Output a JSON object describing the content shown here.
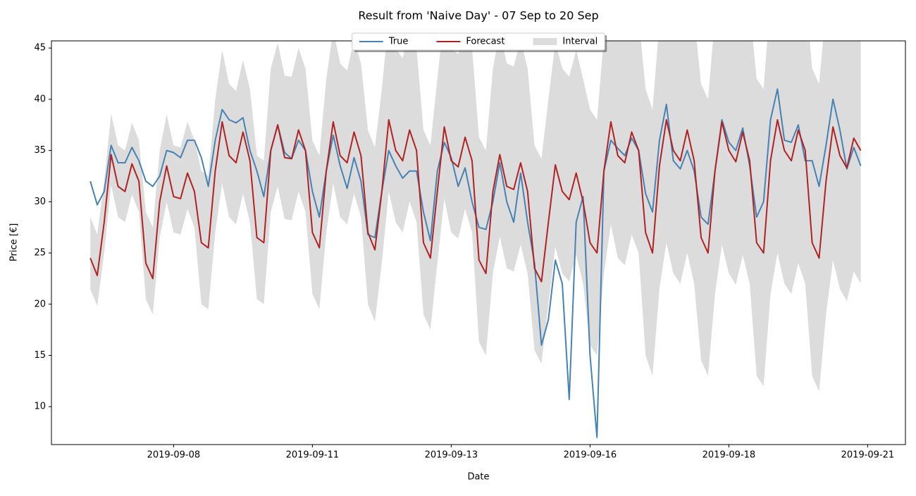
{
  "chart_data": {
    "type": "line",
    "title": "Result from 'Naive Day' - 07 Sep to 20 Sep",
    "xlabel": "Date",
    "ylabel": "Price [€]",
    "x": [
      "2019-09-07T00:00",
      "2019-09-07T03:00",
      "2019-09-07T06:00",
      "2019-09-07T09:00",
      "2019-09-07T12:00",
      "2019-09-07T15:00",
      "2019-09-07T18:00",
      "2019-09-07T21:00",
      "2019-09-08T00:00",
      "2019-09-08T03:00",
      "2019-09-08T06:00",
      "2019-09-08T09:00",
      "2019-09-08T12:00",
      "2019-09-08T15:00",
      "2019-09-08T18:00",
      "2019-09-08T21:00",
      "2019-09-09T00:00",
      "2019-09-09T03:00",
      "2019-09-09T06:00",
      "2019-09-09T09:00",
      "2019-09-09T12:00",
      "2019-09-09T15:00",
      "2019-09-09T18:00",
      "2019-09-09T21:00",
      "2019-09-10T00:00",
      "2019-09-10T03:00",
      "2019-09-10T06:00",
      "2019-09-10T09:00",
      "2019-09-10T12:00",
      "2019-09-10T15:00",
      "2019-09-10T18:00",
      "2019-09-10T21:00",
      "2019-09-11T00:00",
      "2019-09-11T03:00",
      "2019-09-11T06:00",
      "2019-09-11T09:00",
      "2019-09-11T12:00",
      "2019-09-11T15:00",
      "2019-09-11T18:00",
      "2019-09-11T21:00",
      "2019-09-12T00:00",
      "2019-09-12T03:00",
      "2019-09-12T06:00",
      "2019-09-12T09:00",
      "2019-09-12T12:00",
      "2019-09-12T15:00",
      "2019-09-12T18:00",
      "2019-09-12T21:00",
      "2019-09-13T00:00",
      "2019-09-13T03:00",
      "2019-09-13T06:00",
      "2019-09-13T09:00",
      "2019-09-13T12:00",
      "2019-09-13T15:00",
      "2019-09-13T18:00",
      "2019-09-13T21:00",
      "2019-09-14T00:00",
      "2019-09-14T03:00",
      "2019-09-14T06:00",
      "2019-09-14T09:00",
      "2019-09-14T12:00",
      "2019-09-14T15:00",
      "2019-09-14T18:00",
      "2019-09-14T21:00",
      "2019-09-15T00:00",
      "2019-09-15T03:00",
      "2019-09-15T06:00",
      "2019-09-15T09:00",
      "2019-09-15T12:00",
      "2019-09-15T15:00",
      "2019-09-15T18:00",
      "2019-09-15T21:00",
      "2019-09-16T00:00",
      "2019-09-16T03:00",
      "2019-09-16T06:00",
      "2019-09-16T09:00",
      "2019-09-16T12:00",
      "2019-09-16T15:00",
      "2019-09-16T18:00",
      "2019-09-16T21:00",
      "2019-09-17T00:00",
      "2019-09-17T03:00",
      "2019-09-17T06:00",
      "2019-09-17T09:00",
      "2019-09-17T12:00",
      "2019-09-17T15:00",
      "2019-09-17T18:00",
      "2019-09-17T21:00",
      "2019-09-18T00:00",
      "2019-09-18T03:00",
      "2019-09-18T06:00",
      "2019-09-18T09:00",
      "2019-09-18T12:00",
      "2019-09-18T15:00",
      "2019-09-18T18:00",
      "2019-09-18T21:00",
      "2019-09-19T00:00",
      "2019-09-19T03:00",
      "2019-09-19T06:00",
      "2019-09-19T09:00",
      "2019-09-19T12:00",
      "2019-09-19T15:00",
      "2019-09-19T18:00",
      "2019-09-19T21:00",
      "2019-09-20T00:00",
      "2019-09-20T03:00",
      "2019-09-20T06:00",
      "2019-09-20T09:00",
      "2019-09-20T12:00",
      "2019-09-20T15:00",
      "2019-09-20T18:00",
      "2019-09-20T21:00"
    ],
    "series": [
      {
        "name": "True",
        "color": "#4682b4",
        "values": [
          32,
          29.7,
          31,
          35.5,
          33.8,
          33.8,
          35.3,
          34,
          32,
          31.5,
          32.5,
          35,
          34.8,
          34.3,
          36,
          36,
          34.3,
          31.5,
          36,
          39,
          38,
          37.7,
          38.2,
          35,
          33,
          30.5,
          35,
          37.5,
          34.8,
          34.2,
          36,
          35,
          31,
          28.5,
          33,
          36.5,
          33.5,
          31.3,
          34.3,
          32,
          26.8,
          26.5,
          31,
          35,
          33.5,
          32.3,
          33,
          33,
          29,
          26.2,
          33,
          35.8,
          34.3,
          31.5,
          33.3,
          30,
          27.5,
          27.3,
          30,
          33.8,
          30,
          28,
          32.8,
          28,
          24,
          16,
          18.5,
          24.3,
          22,
          10.7,
          28,
          30.5,
          15,
          7,
          33,
          36,
          35.2,
          34.5,
          36.2,
          35,
          30.8,
          29,
          36,
          39.5,
          34,
          33.2,
          35,
          33,
          28.5,
          27.8,
          33,
          38,
          35.8,
          35,
          37.2,
          33.5,
          28.5,
          30,
          38,
          41,
          36,
          35.8,
          37.5,
          34,
          34,
          31.5,
          35.5,
          40,
          37,
          33.2,
          35.3,
          33.5
        ]
      },
      {
        "name": "Forecast",
        "color": "#b22222",
        "values": [
          24.5,
          22.8,
          28,
          34.6,
          31.5,
          31,
          33.7,
          32,
          24,
          22.5,
          30,
          33.5,
          30.5,
          30.3,
          32.8,
          31,
          26,
          25.5,
          33,
          37.8,
          34.5,
          33.8,
          36.8,
          34,
          26.5,
          26,
          35,
          37.5,
          34.3,
          34.2,
          37,
          35,
          27,
          25.5,
          33,
          37.8,
          34.5,
          33.8,
          36.8,
          34.5,
          27,
          25.3,
          31,
          38,
          35,
          34,
          37,
          35,
          26,
          24.5,
          31,
          37.3,
          34,
          33.4,
          36.3,
          34,
          24.3,
          23,
          31,
          34.6,
          31.5,
          31.2,
          33.8,
          31,
          23.5,
          22.2,
          28,
          33.6,
          31,
          30.2,
          32.8,
          30,
          26,
          25,
          33,
          37.8,
          34.5,
          33.8,
          36.8,
          35,
          27,
          25,
          33.5,
          38,
          35,
          34,
          37,
          34,
          26.5,
          25,
          33,
          37.8,
          35,
          33.9,
          36.8,
          34,
          26,
          25,
          34,
          38,
          35,
          34,
          37,
          35,
          26,
          24.5,
          32,
          37.3,
          34.5,
          33.3,
          36.2,
          35
        ]
      },
      {
        "name": "Interval",
        "color": "#dcdcdc",
        "lower": [
          21.5,
          19.8,
          25,
          31.6,
          28.5,
          28,
          30.7,
          29,
          20.5,
          19,
          26.5,
          30,
          27,
          26.8,
          29.3,
          27.5,
          20,
          19.5,
          27,
          31.8,
          28.5,
          27.8,
          30.8,
          28,
          20.5,
          20,
          29,
          31.5,
          28.3,
          28.2,
          31,
          29,
          21,
          19.5,
          27,
          31.8,
          28.5,
          27.8,
          30.8,
          28.5,
          20,
          18.3,
          24,
          31,
          28,
          27,
          30,
          28,
          19,
          17.5,
          24,
          30.3,
          27,
          26.4,
          29.3,
          27,
          16.3,
          15,
          23,
          26.6,
          23.5,
          23.2,
          25.8,
          23,
          15.5,
          14.2,
          20,
          25.6,
          23,
          22.2,
          24.8,
          22,
          16,
          15,
          23,
          27.8,
          24.5,
          23.8,
          26.8,
          25,
          15,
          13,
          21.5,
          26,
          23,
          22,
          25,
          22,
          14.5,
          13,
          21,
          25.8,
          23,
          21.9,
          24.8,
          22,
          13,
          12,
          21,
          25,
          22,
          21,
          24,
          22,
          13,
          11.5,
          19,
          24.3,
          21.5,
          20.3,
          23.2,
          22
        ],
        "upper": [
          28.5,
          26.8,
          32,
          38.6,
          35.5,
          35,
          37.7,
          36,
          29,
          27.5,
          35,
          38.5,
          35.5,
          35.3,
          37.8,
          36,
          33,
          32.5,
          40,
          44.8,
          41.5,
          40.8,
          43.8,
          41,
          34.5,
          34,
          43,
          45.5,
          42.3,
          42.2,
          45,
          43,
          36,
          34.5,
          42,
          46.8,
          43.5,
          42.8,
          45.8,
          43.5,
          37,
          35.3,
          41,
          48,
          45,
          44,
          47,
          45,
          37,
          35.5,
          42,
          48.3,
          45,
          44.4,
          47.3,
          45,
          36.3,
          35,
          43,
          46.6,
          43.5,
          43.2,
          45.8,
          43,
          35.5,
          34.2,
          40,
          45.6,
          43,
          42.2,
          44.8,
          42,
          39,
          38,
          46,
          50.8,
          47.5,
          46.8,
          49.8,
          48,
          41,
          39,
          47.5,
          52,
          49,
          48,
          51,
          48,
          41.5,
          40,
          48,
          52.8,
          50,
          48.9,
          51.8,
          49,
          42,
          41,
          50,
          54,
          51,
          50,
          53,
          51,
          43,
          41.5,
          49,
          54.3,
          51.5,
          50.3,
          53.2,
          52
        ]
      }
    ],
    "xlim": [
      "2019-09-06T07:12",
      "2019-09-21T16:19"
    ],
    "xticks": [
      {
        "value": "2019-09-08T12:00",
        "label": "2019-09-08"
      },
      {
        "value": "2019-09-11T00:00",
        "label": "2019-09-11"
      },
      {
        "value": "2019-09-13T12:00",
        "label": "2019-09-13"
      },
      {
        "value": "2019-09-16T00:00",
        "label": "2019-09-16"
      },
      {
        "value": "2019-09-18T12:00",
        "label": "2019-09-18"
      },
      {
        "value": "2019-09-21T00:00",
        "label": "2019-09-21"
      }
    ],
    "ylim": [
      6.3,
      45.7
    ],
    "yticks": [
      10,
      15,
      20,
      25,
      30,
      35,
      40,
      45
    ],
    "grid": false,
    "legend": "upper center"
  }
}
